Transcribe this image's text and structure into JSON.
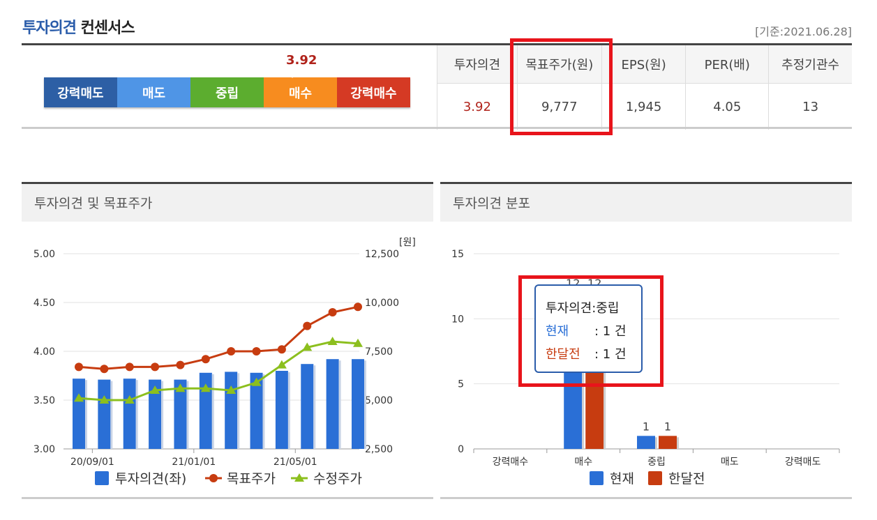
{
  "header": {
    "title_highlight": "투자의견",
    "title_rest": "컨센서스",
    "basis": "[기준:2021.06.28]"
  },
  "scale": {
    "marker_value": "3.92",
    "segments": [
      {
        "label": "강력매도",
        "color": "#2d5fa5"
      },
      {
        "label": "매도",
        "color": "#4f95e6"
      },
      {
        "label": "중립",
        "color": "#5cad2f"
      },
      {
        "label": "매수",
        "color": "#f78c1f"
      },
      {
        "label": "강력매수",
        "color": "#d53a24"
      }
    ]
  },
  "summary": {
    "headers": [
      "투자의견",
      "목표주가(원)",
      "EPS(원)",
      "PER(배)",
      "추정기관수"
    ],
    "values": [
      "3.92",
      "9,777",
      "1,945",
      "4.05",
      "13"
    ]
  },
  "panels": {
    "left_title": "투자의견 및 목표주가",
    "right_title": "투자의견 분포"
  },
  "tooltip": {
    "title": "투자의견:중립",
    "row1_label": "현재",
    "row1_value": ": 1 건",
    "row2_label": "한달전",
    "row2_value": ": 1 건"
  },
  "chart_data": [
    {
      "type": "bar",
      "title": "투자의견 및 목표주가",
      "x_tick_labels": [
        "20/09/01",
        "21/01/01",
        "21/05/01"
      ],
      "y_left": {
        "ticks": [
          "3.00",
          "3.50",
          "4.00",
          "4.50",
          "5.00"
        ],
        "range": [
          3.0,
          5.0
        ]
      },
      "y_right": {
        "unit_label": "[원]",
        "ticks": [
          "2,500",
          "5,000",
          "7,500",
          "10,000",
          "12,500"
        ],
        "range": [
          2500,
          12500
        ]
      },
      "series": [
        {
          "name": "투자의견(좌)",
          "type": "bar",
          "axis": "left",
          "color": "#2a6fd6",
          "values": [
            3.72,
            3.71,
            3.72,
            3.71,
            3.71,
            3.78,
            3.79,
            3.78,
            3.8,
            3.87,
            3.92,
            3.92
          ]
        },
        {
          "name": "목표주가",
          "type": "line",
          "axis": "right",
          "color": "#c73c10",
          "marker": "circle",
          "values": [
            6700,
            6600,
            6700,
            6700,
            6800,
            7100,
            7500,
            7500,
            7600,
            8800,
            9500,
            9777
          ]
        },
        {
          "name": "수정주가",
          "type": "line",
          "axis": "right",
          "color": "#8cbf1e",
          "marker": "triangle",
          "values": [
            5100,
            5000,
            5000,
            5500,
            5600,
            5600,
            5500,
            5900,
            6800,
            7700,
            8000,
            7900
          ]
        }
      ],
      "grid": true,
      "legend": "bottom"
    },
    {
      "type": "bar",
      "title": "투자의견 분포",
      "categories": [
        "강력매수",
        "매수",
        "중립",
        "매도",
        "강력매도"
      ],
      "y_ticks": [
        "0",
        "5",
        "10",
        "15"
      ],
      "ylim": [
        0,
        15
      ],
      "series": [
        {
          "name": "현재",
          "color": "#2a6fd6",
          "values": [
            0,
            12,
            1,
            0,
            0
          ]
        },
        {
          "name": "한달전",
          "color": "#c73c10",
          "values": [
            0,
            12,
            1,
            0,
            0
          ]
        }
      ],
      "data_labels": [
        "12",
        "12",
        "1",
        "1"
      ],
      "grid": true,
      "legend": "bottom"
    }
  ]
}
